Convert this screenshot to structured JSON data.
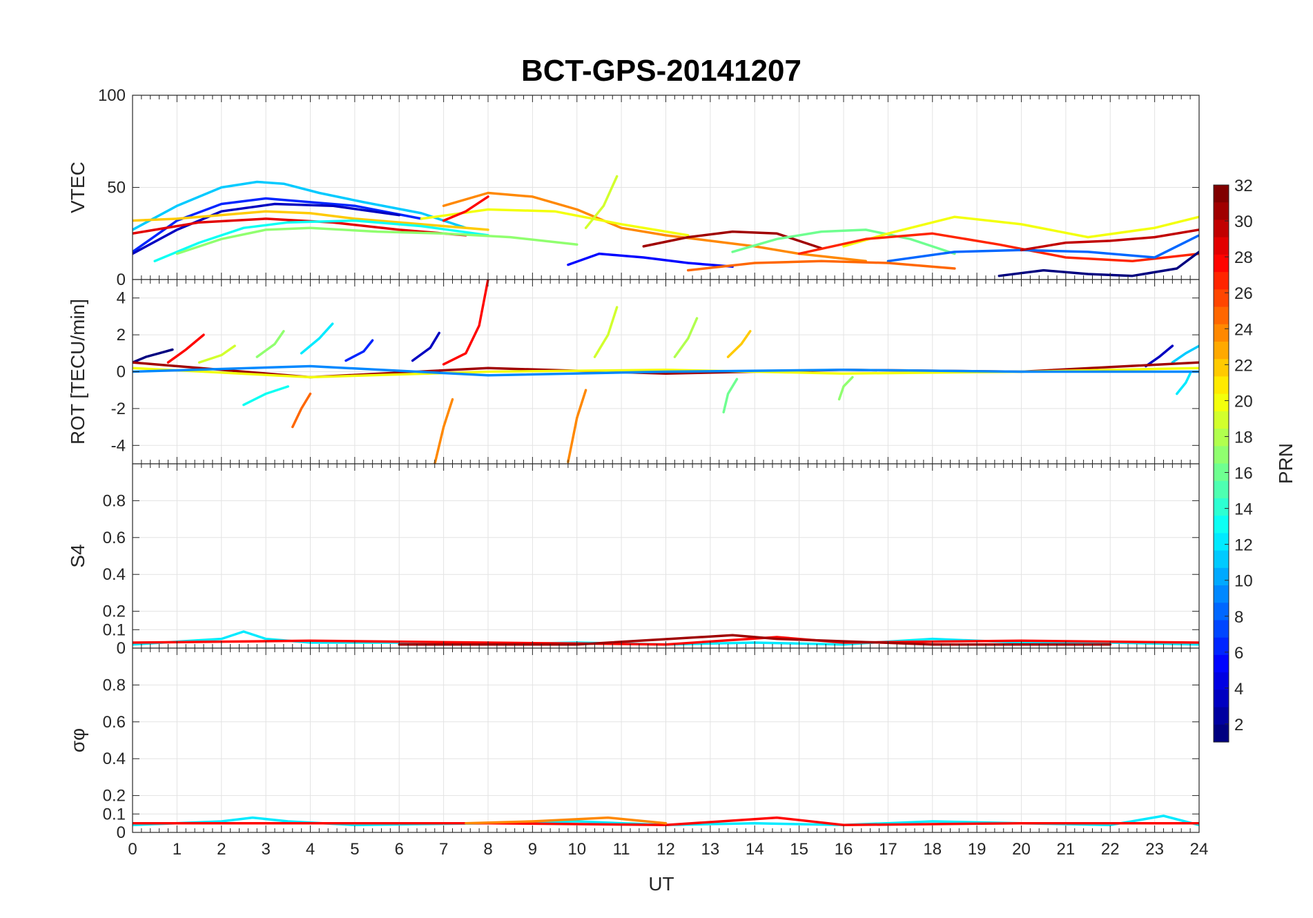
{
  "chart_data": {
    "type": "line",
    "title": "BCT-GPS-20141207",
    "xlabel": "UT",
    "x_ticks": [
      0,
      1,
      2,
      3,
      4,
      5,
      6,
      7,
      8,
      9,
      10,
      11,
      12,
      13,
      14,
      15,
      16,
      17,
      18,
      19,
      20,
      21,
      22,
      23,
      24
    ],
    "x_range": [
      0,
      24
    ],
    "grid": true,
    "colorbar": {
      "label": "PRN",
      "range": [
        1,
        32
      ],
      "ticks": [
        2,
        4,
        6,
        8,
        10,
        12,
        14,
        16,
        18,
        20,
        22,
        24,
        26,
        28,
        30,
        32
      ],
      "colormap": "jet"
    },
    "panels": [
      {
        "name": "vtec",
        "ylabel": "VTEC",
        "ylim": [
          0,
          100
        ],
        "yticks": [
          0,
          50,
          100
        ],
        "series": [
          {
            "prn": 11,
            "x": [
              0,
              1,
              2,
              2.8,
              3.4,
              4.2,
              5.2,
              6.5,
              7.5
            ],
            "y": [
              27,
              40,
              50,
              53,
              52,
              47,
              42,
              36,
              28
            ]
          },
          {
            "prn": 6,
            "x": [
              0,
              1,
              2,
              3,
              4,
              5,
              6.5
            ],
            "y": [
              15,
              32,
              41,
              44,
              42,
              40,
              33
            ]
          },
          {
            "prn": 3,
            "x": [
              0,
              1,
              2,
              3.2,
              4.5,
              6
            ],
            "y": [
              14,
              27,
              37,
              41,
              40,
              35
            ]
          },
          {
            "prn": 29,
            "x": [
              0,
              1.5,
              3,
              4.5,
              6,
              7.5
            ],
            "y": [
              25,
              31,
              33,
              31,
              27,
              24
            ]
          },
          {
            "prn": 22,
            "x": [
              0,
              1,
              2,
              3,
              4,
              5,
              6.5,
              8
            ],
            "y": [
              32,
              33,
              35,
              37,
              36,
              33,
              30,
              27
            ]
          },
          {
            "prn": 13,
            "x": [
              0.5,
              1.5,
              2.5,
              3.5,
              5,
              6.5,
              8
            ],
            "y": [
              10,
              20,
              28,
              31,
              32,
              29,
              24
            ]
          },
          {
            "prn": 17,
            "x": [
              1,
              2,
              3,
              4,
              5.5,
              7,
              8.5,
              10
            ],
            "y": [
              14,
              22,
              27,
              28,
              26,
              25,
              23,
              19
            ]
          },
          {
            "prn": 24,
            "x": [
              7,
              8,
              9,
              10,
              11,
              12,
              13,
              14,
              15,
              16.5
            ],
            "y": [
              40,
              47,
              45,
              38,
              28,
              24,
              21,
              18,
              14,
              10
            ]
          },
          {
            "prn": 20,
            "x": [
              6.5,
              8,
              9.5,
              11,
              12.5
            ],
            "y": [
              33,
              38,
              37,
              30,
              24
            ]
          },
          {
            "prn": 28,
            "x": [
              7,
              7.5,
              8
            ],
            "y": [
              32,
              37,
              45
            ]
          },
          {
            "prn": 19,
            "x": [
              10.2,
              10.6,
              10.9
            ],
            "y": [
              28,
              40,
              56
            ]
          },
          {
            "prn": 31,
            "x": [
              11.5,
              12.5,
              13.5,
              14.5,
              15.5
            ],
            "y": [
              18,
              23,
              26,
              25,
              17
            ]
          },
          {
            "prn": 16,
            "x": [
              13.5,
              14.5,
              15.5,
              16.5,
              17.5,
              18.5
            ],
            "y": [
              15,
              22,
              26,
              27,
              22,
              14
            ]
          },
          {
            "prn": 20,
            "x": [
              16,
              17,
              18.5,
              20,
              21.5,
              23,
              24
            ],
            "y": [
              18,
              25,
              34,
              30,
              23,
              28,
              34
            ]
          },
          {
            "prn": 27,
            "x": [
              15,
              16.5,
              18,
              19.5,
              21,
              22.5,
              24
            ],
            "y": [
              14,
              22,
              25,
              19,
              12,
              10,
              14
            ]
          },
          {
            "prn": 8,
            "x": [
              17,
              18.5,
              20,
              21.5,
              23,
              24
            ],
            "y": [
              10,
              15,
              16,
              15,
              12,
              24
            ]
          },
          {
            "prn": 1,
            "x": [
              19.5,
              20.5,
              21.5,
              22.5,
              23.5,
              24
            ],
            "y": [
              2,
              5,
              3,
              2,
              6,
              15
            ]
          },
          {
            "prn": 30,
            "x": [
              20,
              21,
              22,
              23,
              24
            ],
            "y": [
              16,
              20,
              21,
              23,
              27
            ]
          },
          {
            "prn": 5,
            "x": [
              9.8,
              10.5,
              11.5,
              12.5,
              13.5
            ],
            "y": [
              8,
              14,
              12,
              9,
              7
            ]
          },
          {
            "prn": 25,
            "x": [
              12.5,
              14,
              15.5,
              17,
              18.5
            ],
            "y": [
              5,
              9,
              10,
              9,
              6
            ]
          }
        ]
      },
      {
        "name": "rot",
        "ylabel": "ROT [TECU/min]",
        "ylim": [
          -5,
          5
        ],
        "yticks": [
          -4,
          -2,
          0,
          2,
          4
        ],
        "series": [
          {
            "prn": 1,
            "x": [
              0,
              0.3,
              0.6,
              0.9
            ],
            "y": [
              0.5,
              0.8,
              1.0,
              1.2
            ]
          },
          {
            "prn": 28,
            "x": [
              0.8,
              1.2,
              1.6
            ],
            "y": [
              0.5,
              1.2,
              2.0
            ]
          },
          {
            "prn": 19,
            "x": [
              1.5,
              2,
              2.3
            ],
            "y": [
              0.5,
              0.9,
              1.4
            ]
          },
          {
            "prn": 17,
            "x": [
              2.8,
              3.2,
              3.4
            ],
            "y": [
              0.8,
              1.5,
              2.2
            ]
          },
          {
            "prn": 12,
            "x": [
              3.8,
              4.2,
              4.5
            ],
            "y": [
              1.0,
              1.8,
              2.6
            ]
          },
          {
            "prn": 6,
            "x": [
              4.8,
              5.2,
              5.4
            ],
            "y": [
              0.6,
              1.1,
              1.7
            ]
          },
          {
            "prn": 3,
            "x": [
              6.3,
              6.7,
              6.9
            ],
            "y": [
              0.6,
              1.3,
              2.1
            ]
          },
          {
            "prn": 28,
            "x": [
              7,
              7.5,
              7.8,
              8
            ],
            "y": [
              0.4,
              1.0,
              2.5,
              5.0
            ]
          },
          {
            "prn": 24,
            "x": [
              6.8,
              7,
              7.2
            ],
            "y": [
              -5.0,
              -3.0,
              -1.5
            ]
          },
          {
            "prn": 24,
            "x": [
              9.8,
              10,
              10.2
            ],
            "y": [
              -4.9,
              -2.5,
              -1.0
            ]
          },
          {
            "prn": 13,
            "x": [
              2.5,
              3,
              3.5
            ],
            "y": [
              -1.8,
              -1.2,
              -0.8
            ]
          },
          {
            "prn": 25,
            "x": [
              3.6,
              3.8,
              4
            ],
            "y": [
              -3.0,
              -2.0,
              -1.2
            ]
          },
          {
            "prn": 19,
            "x": [
              10.4,
              10.7,
              10.9
            ],
            "y": [
              0.8,
              2.0,
              3.5
            ]
          },
          {
            "prn": 18,
            "x": [
              12.2,
              12.5,
              12.7
            ],
            "y": [
              0.8,
              1.8,
              2.9
            ]
          },
          {
            "prn": 22,
            "x": [
              13.4,
              13.7,
              13.9
            ],
            "y": [
              0.8,
              1.5,
              2.2
            ]
          },
          {
            "prn": 16,
            "x": [
              13.3,
              13.4,
              13.6
            ],
            "y": [
              -2.2,
              -1.2,
              -0.4
            ]
          },
          {
            "prn": 17,
            "x": [
              15.9,
              16,
              16.2
            ],
            "y": [
              -1.5,
              -0.8,
              -0.3
            ]
          },
          {
            "prn": 3,
            "x": [
              22.8,
              23.1,
              23.4
            ],
            "y": [
              0.3,
              0.8,
              1.4
            ]
          },
          {
            "prn": 11,
            "x": [
              23.4,
              23.7,
              24
            ],
            "y": [
              0.5,
              1.0,
              1.4
            ]
          },
          {
            "prn": 12,
            "x": [
              23.5,
              23.7,
              23.8
            ],
            "y": [
              -1.2,
              -0.6,
              -0.1
            ]
          },
          {
            "prn": 31,
            "x": [
              0,
              4,
              8,
              12,
              16,
              20,
              24
            ],
            "y": [
              0.5,
              -0.3,
              0.2,
              -0.1,
              0.1,
              0,
              0.5
            ]
          },
          {
            "prn": 20,
            "x": [
              0,
              4,
              8,
              12,
              16,
              20,
              24
            ],
            "y": [
              0.2,
              -0.3,
              0,
              0.1,
              -0.1,
              0,
              0.2
            ]
          },
          {
            "prn": 9,
            "x": [
              0,
              4,
              8,
              12,
              16,
              20,
              24
            ],
            "y": [
              0,
              0.3,
              -0.2,
              0,
              0.1,
              0,
              0
            ]
          }
        ]
      },
      {
        "name": "s4",
        "ylabel": "S4",
        "ylim": [
          0,
          1
        ],
        "yticks": [
          0,
          0.1,
          0.2,
          0.4,
          0.6,
          0.8
        ],
        "series": [
          {
            "prn": 12,
            "x": [
              0,
              2,
              2.5,
              3,
              4,
              6,
              8,
              10,
              12,
              14,
              16,
              18,
              20,
              22,
              24
            ],
            "y": [
              0.02,
              0.05,
              0.09,
              0.05,
              0.03,
              0.03,
              0.02,
              0.03,
              0.02,
              0.03,
              0.02,
              0.05,
              0.03,
              0.03,
              0.02
            ]
          },
          {
            "prn": 28,
            "x": [
              0,
              4,
              8,
              12,
              14.5,
              16,
              20,
              24
            ],
            "y": [
              0.03,
              0.04,
              0.03,
              0.02,
              0.06,
              0.03,
              0.04,
              0.03
            ]
          },
          {
            "prn": 31,
            "x": [
              6,
              10,
              13.5,
              14.5,
              18,
              22
            ],
            "y": [
              0.02,
              0.02,
              0.07,
              0.05,
              0.02,
              0.02
            ]
          }
        ]
      },
      {
        "name": "sigma_phi",
        "ylabel": "σφ",
        "ylim": [
          0,
          1
        ],
        "yticks": [
          0,
          0.1,
          0.2,
          0.4,
          0.6,
          0.8
        ],
        "series": [
          {
            "prn": 12,
            "x": [
              0,
              2,
              2.7,
              3.5,
              5,
              8,
              10,
              12,
              14,
              16,
              18,
              20,
              22,
              23.2,
              24
            ],
            "y": [
              0.04,
              0.06,
              0.08,
              0.06,
              0.04,
              0.05,
              0.06,
              0.04,
              0.05,
              0.04,
              0.06,
              0.05,
              0.04,
              0.09,
              0.04
            ]
          },
          {
            "prn": 28,
            "x": [
              0,
              4,
              8,
              12,
              14.5,
              16,
              20,
              24
            ],
            "y": [
              0.05,
              0.05,
              0.05,
              0.04,
              0.08,
              0.04,
              0.05,
              0.05
            ]
          },
          {
            "prn": 24,
            "x": [
              7.5,
              9,
              10.7,
              12
            ],
            "y": [
              0.05,
              0.06,
              0.08,
              0.05
            ]
          }
        ]
      }
    ]
  }
}
